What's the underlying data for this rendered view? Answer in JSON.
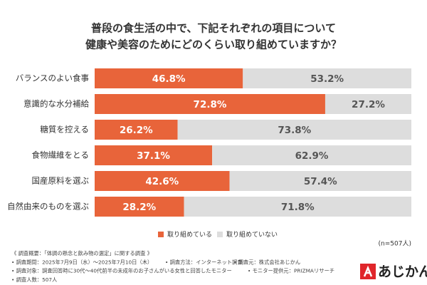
{
  "chart_data": {
    "type": "stacked-bar-horizontal",
    "title": [
      "普段の食生活の中で、下記それぞれの項目について",
      "健康や美容のためにどのくらい取り組めていますか？"
    ],
    "categories": [
      "バランスのよい食事",
      "意識的な水分補給",
      "糖質を控える",
      "食物繊維をとる",
      "国産原料を選ぶ",
      "自然由来のものを選ぶ"
    ],
    "series": [
      {
        "name": "取り組めている",
        "color": "#e8643a",
        "values": [
          46.8,
          72.8,
          26.2,
          37.1,
          42.6,
          28.2
        ],
        "value_labels": [
          "46.8%",
          "72.8%",
          "26.2%",
          "37.1%",
          "42.6%",
          "28.2%"
        ]
      },
      {
        "name": "取り組めていない",
        "color": "#dddddd",
        "values": [
          53.2,
          27.2,
          73.8,
          62.9,
          57.4,
          71.8
        ],
        "value_labels": [
          "53.2%",
          "27.2%",
          "73.8%",
          "62.9%",
          "57.4%",
          "71.8%"
        ]
      }
    ],
    "annotation": "(n=507人)",
    "notes": [
      [
        "《 調査概要：「体調の懸念と飲み物の選定」に関する調査 》"
      ],
      [
        "• 調査期間：2025年7月9日（水）～2025年7月10日（木）",
        "• 調査方法：インターネット調査",
        "• 調査元：株式会社あじかん"
      ],
      [
        "• 調査対象：調査回答時に30代～40代前半の未成年のお子さんがいる女性と回答したモニター",
        "• モニター提供元：PRIZMAリサーチ"
      ],
      [
        "• 調査人数：507人"
      ]
    ],
    "logo": "あじかん"
  }
}
